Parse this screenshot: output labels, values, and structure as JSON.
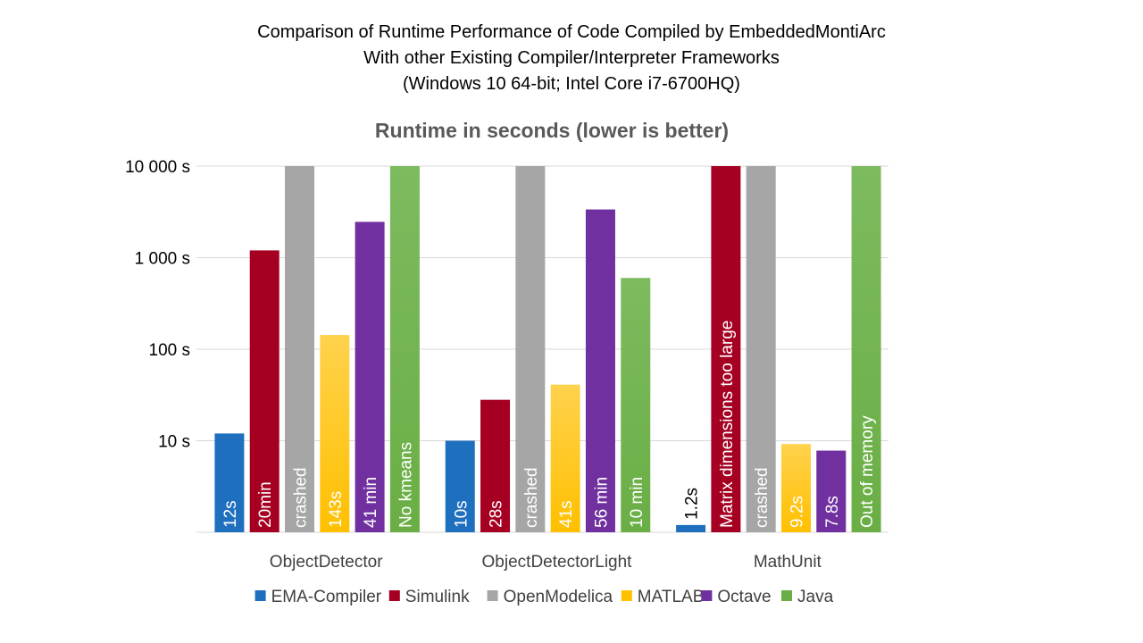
{
  "slide": {
    "title_lines": [
      "Comparison of Runtime Performance of Code Compiled by EmbeddedMontiArc",
      "With other Existing Compiler/Interpreter Frameworks",
      "(Windows 10 64-bit; Intel Core i7-6700HQ)"
    ]
  },
  "chart_data": {
    "type": "bar",
    "title": "Runtime in seconds (lower is better)",
    "y_scale": "log",
    "ylim": [
      1,
      10000
    ],
    "y_ticks": [
      {
        "value": 10000,
        "label": "10 000 s"
      },
      {
        "value": 1000,
        "label": "1 000 s"
      },
      {
        "value": 100,
        "label": "100 s"
      },
      {
        "value": 10,
        "label": "10 s"
      }
    ],
    "grid": true,
    "legend_position": "bottom",
    "categories": [
      "ObjectDetector",
      "ObjectDetectorLight",
      "MathUnit"
    ],
    "series": [
      {
        "name": "EMA-Compiler",
        "color": "#1F6FBF",
        "color_light": "#1F6FBF",
        "values": [
          12,
          10,
          1.2
        ],
        "labels": [
          "12s",
          "10s",
          "1.2s"
        ],
        "label_outside": [
          false,
          false,
          true
        ]
      },
      {
        "name": "Simulink",
        "color": "#A50021",
        "color_light": "#A50021",
        "values": [
          1200,
          28,
          10000
        ],
        "labels": [
          "20min",
          "28s",
          "Matrix dimensions too large"
        ],
        "label_outside": [
          false,
          false,
          false
        ]
      },
      {
        "name": "OpenModelica",
        "color": "#A6A6A6",
        "color_light": "#A6A6A6",
        "values": [
          10000,
          10000,
          10000
        ],
        "labels": [
          "crashed",
          "crashed",
          "crashed"
        ],
        "label_outside": [
          false,
          false,
          false
        ]
      },
      {
        "name": "MATLAB",
        "color": "#FFC000",
        "color_light": "#FFD24D",
        "values": [
          143,
          41,
          9.2
        ],
        "labels": [
          "143s",
          "41s",
          "9.2s"
        ],
        "label_outside": [
          false,
          false,
          false
        ]
      },
      {
        "name": "Octave",
        "color": "#7030A0",
        "color_light": "#7030A0",
        "values": [
          2460,
          3360,
          7.8
        ],
        "labels": [
          "41 min",
          "56 min",
          "7.8s"
        ],
        "label_outside": [
          false,
          false,
          false
        ]
      },
      {
        "name": "Java",
        "color": "#6AAE45",
        "color_light": "#7DBB5F",
        "values": [
          10000,
          600,
          10000
        ],
        "labels": [
          "No kmeans",
          "10 min",
          "Out of memory"
        ],
        "label_outside": [
          false,
          false,
          false
        ]
      }
    ]
  }
}
